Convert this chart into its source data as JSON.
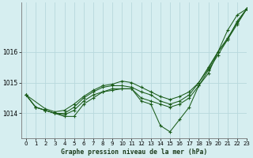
{
  "title": "Graphe pression niveau de la mer (hPa)",
  "background_color": "#d6eef0",
  "grid_color": "#b8d8dc",
  "line_color": "#1a5c1a",
  "marker_color": "#1a5c1a",
  "xlim": [
    -0.5,
    23
  ],
  "ylim": [
    1013.2,
    1017.6
  ],
  "yticks": [
    1014,
    1015,
    1016
  ],
  "xticks": [
    0,
    1,
    2,
    3,
    4,
    5,
    6,
    7,
    8,
    9,
    10,
    11,
    12,
    13,
    14,
    15,
    16,
    17,
    18,
    19,
    20,
    21,
    22,
    23
  ],
  "series": [
    {
      "x": [
        0,
        1,
        2,
        3,
        4,
        5,
        6,
        7,
        8,
        9,
        10,
        11,
        12,
        13,
        14,
        15,
        16,
        17,
        18,
        19,
        20,
        21,
        22,
        23
      ],
      "y": [
        1014.6,
        1014.2,
        1014.1,
        1014.0,
        1013.9,
        1013.9,
        1014.3,
        1014.5,
        1014.7,
        1014.8,
        1014.8,
        1014.8,
        1014.4,
        1014.3,
        1013.6,
        1013.4,
        1013.8,
        1014.2,
        1014.9,
        1015.3,
        1016.0,
        1016.7,
        1017.2,
        1017.4
      ]
    },
    {
      "x": [
        0,
        1,
        2,
        3,
        4,
        5,
        6,
        7,
        8,
        9,
        10,
        11,
        12,
        13,
        14,
        15,
        16,
        17,
        18,
        19,
        20,
        21,
        22,
        23
      ],
      "y": [
        1014.6,
        1014.2,
        1014.1,
        1014.0,
        1013.95,
        1014.1,
        1014.4,
        1014.6,
        1014.7,
        1014.75,
        1014.8,
        1014.8,
        1014.5,
        1014.4,
        1014.3,
        1014.2,
        1014.3,
        1014.5,
        1014.9,
        1015.4,
        1015.9,
        1016.4,
        1017.0,
        1017.4
      ]
    },
    {
      "x": [
        0,
        1,
        2,
        3,
        4,
        5,
        6,
        7,
        8,
        9,
        10,
        11,
        12,
        13,
        14,
        15,
        16,
        17,
        18,
        19,
        20,
        21,
        22,
        23
      ],
      "y": [
        1014.6,
        1014.2,
        1014.1,
        1014.0,
        1014.0,
        1014.2,
        1014.5,
        1014.7,
        1014.85,
        1014.9,
        1014.9,
        1014.85,
        1014.7,
        1014.6,
        1014.4,
        1014.3,
        1014.4,
        1014.6,
        1015.0,
        1015.5,
        1016.0,
        1016.4,
        1016.9,
        1017.4
      ]
    },
    {
      "x": [
        0,
        2,
        3,
        4,
        5,
        6,
        7,
        8,
        9,
        10,
        11,
        12,
        13,
        14,
        15,
        16,
        17,
        18,
        19,
        20,
        21,
        22,
        23
      ],
      "y": [
        1014.6,
        1014.15,
        1014.05,
        1014.1,
        1014.3,
        1014.55,
        1014.75,
        1014.9,
        1014.95,
        1015.05,
        1015.0,
        1014.85,
        1014.7,
        1014.55,
        1014.45,
        1014.55,
        1014.7,
        1015.0,
        1015.45,
        1016.0,
        1016.45,
        1016.95,
        1017.4
      ]
    }
  ]
}
